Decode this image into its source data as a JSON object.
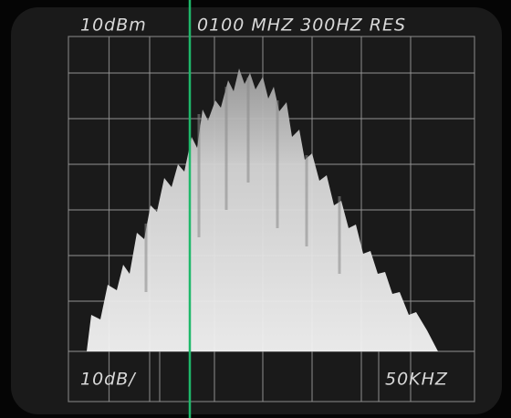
{
  "header": {
    "reference_level": "10dBm",
    "center_info": "0100 MHZ 300HZ RES"
  },
  "footer": {
    "scale": "10dB/",
    "span": "50KHZ"
  }
}
